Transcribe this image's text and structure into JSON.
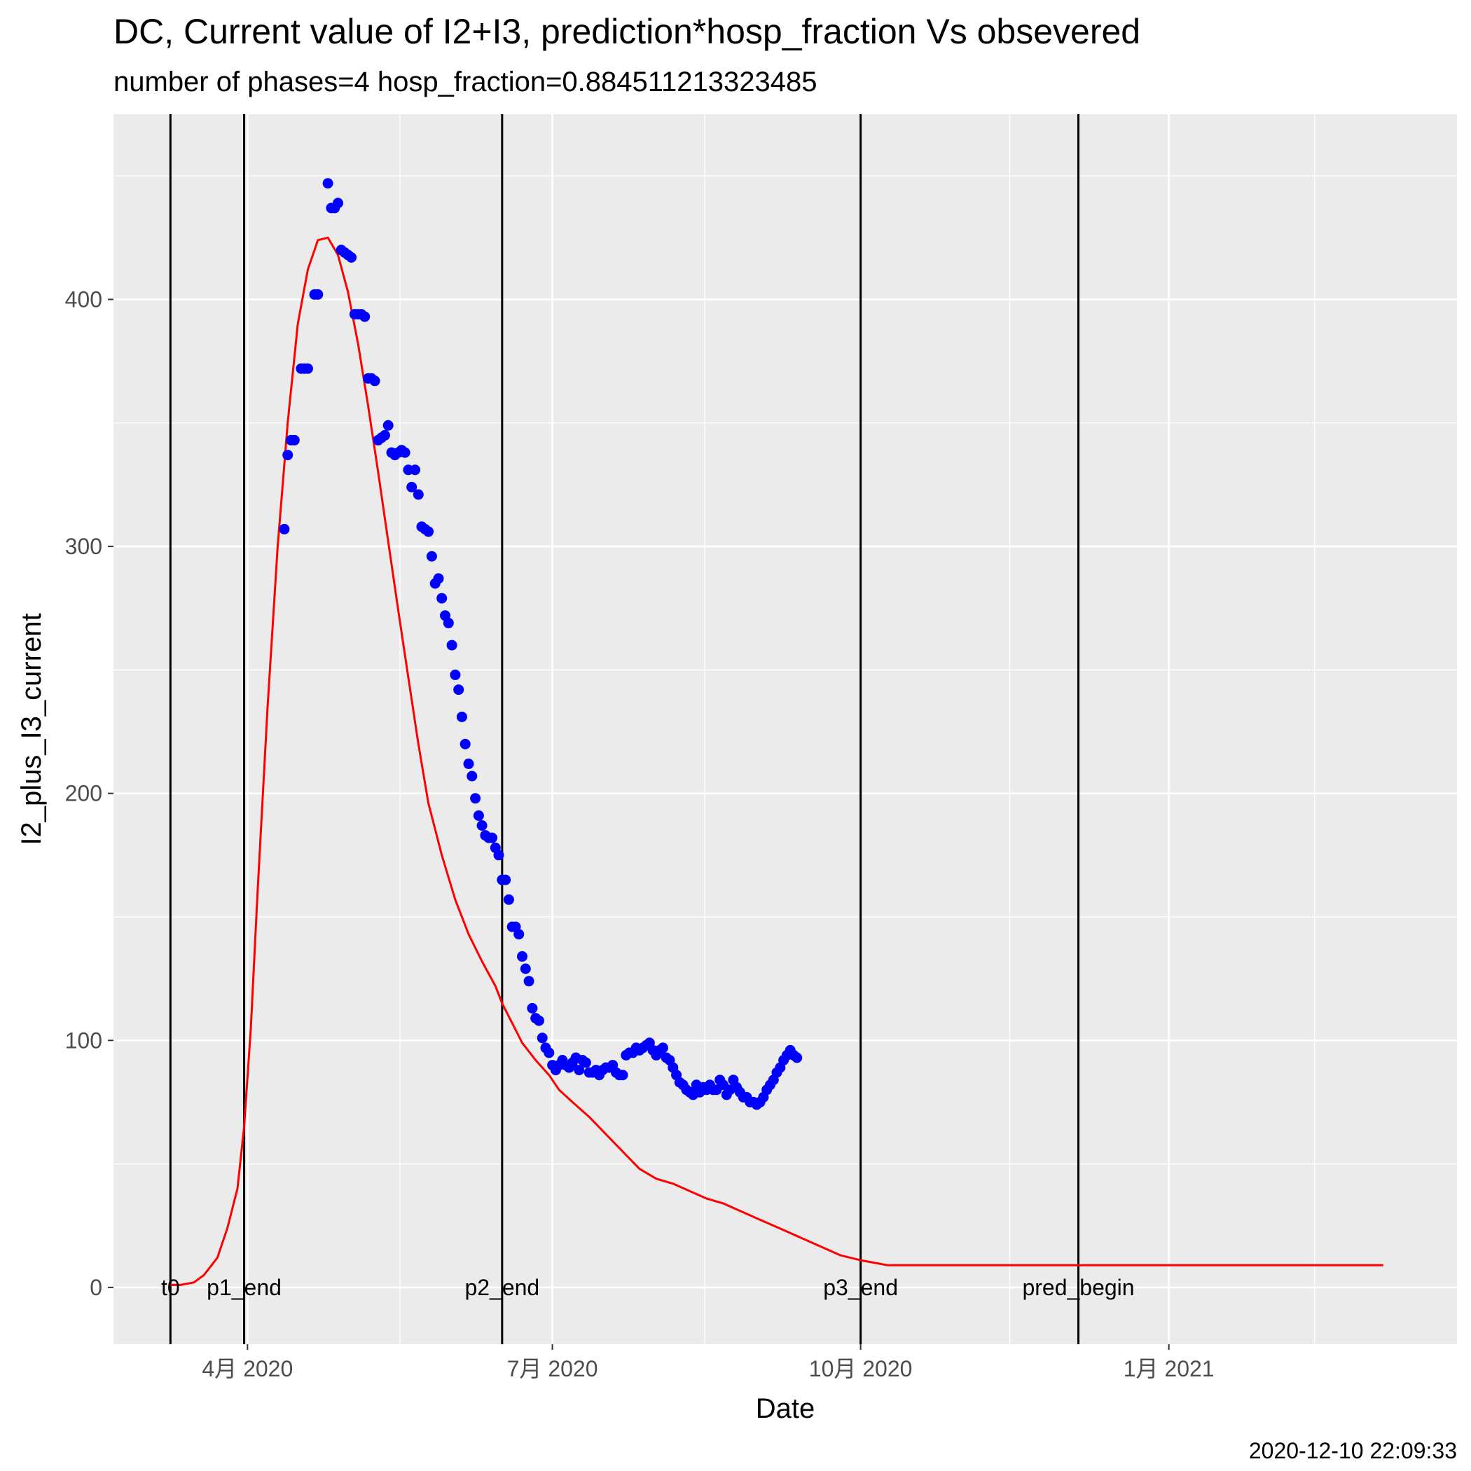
{
  "chart_data": {
    "type": "line",
    "title": "DC, Current value of I2+I3, prediction*hosp_fraction Vs obsevered",
    "subtitle": "number of phases=4   hosp_fraction=0.884511213323485",
    "xlabel": "Date",
    "ylabel": "I2_plus_I3_current",
    "caption": "2020-12-10 22:09:33",
    "xlim": [
      "2020-02-21",
      "2021-03-28"
    ],
    "ylim": [
      -23,
      475
    ],
    "x_ticks": [
      {
        "date": "2020-04-01",
        "label": "4月 2020"
      },
      {
        "date": "2020-07-01",
        "label": "7月 2020"
      },
      {
        "date": "2020-10-01",
        "label": "10月 2020"
      },
      {
        "date": "2021-01-01",
        "label": "1月 2021"
      }
    ],
    "y_ticks": [
      0,
      100,
      200,
      300,
      400
    ],
    "grid": true,
    "panel_background": "#ebebeb",
    "vlines": [
      {
        "date": "2020-03-09",
        "label": "t0"
      },
      {
        "date": "2020-03-31",
        "label": "p1_end"
      },
      {
        "date": "2020-06-16",
        "label": "p2_end"
      },
      {
        "date": "2020-10-01",
        "label": "p3_end"
      },
      {
        "date": "2020-12-05",
        "label": "pred_begin"
      }
    ],
    "series": [
      {
        "style": "line",
        "color": "#ff0000",
        "x": [
          "2020-03-09",
          "2020-03-12",
          "2020-03-16",
          "2020-03-19",
          "2020-03-23",
          "2020-03-26",
          "2020-03-29",
          "2020-03-31",
          "2020-04-02",
          "2020-04-04",
          "2020-04-07",
          "2020-04-10",
          "2020-04-13",
          "2020-04-16",
          "2020-04-19",
          "2020-04-22",
          "2020-04-25",
          "2020-04-28",
          "2020-05-01",
          "2020-05-04",
          "2020-05-07",
          "2020-05-10",
          "2020-05-13",
          "2020-05-16",
          "2020-05-19",
          "2020-05-22",
          "2020-05-25",
          "2020-05-29",
          "2020-06-02",
          "2020-06-06",
          "2020-06-10",
          "2020-06-14",
          "2020-06-16",
          "2020-06-19",
          "2020-06-22",
          "2020-06-26",
          "2020-06-30",
          "2020-07-03",
          "2020-07-07",
          "2020-07-12",
          "2020-07-17",
          "2020-07-22",
          "2020-07-27",
          "2020-08-01",
          "2020-08-06",
          "2020-08-11",
          "2020-08-16",
          "2020-08-21",
          "2020-08-26",
          "2020-08-31",
          "2020-09-05",
          "2020-09-10",
          "2020-09-15",
          "2020-09-20",
          "2020-09-25",
          "2020-10-01",
          "2020-10-05",
          "2020-10-09",
          "2020-10-12",
          "2020-10-16",
          "2020-10-20",
          "2020-10-24",
          "2020-10-28",
          "2020-11-01",
          "2020-11-05",
          "2020-11-09",
          "2020-11-13",
          "2020-11-17",
          "2020-11-21",
          "2020-11-25",
          "2020-11-28",
          "2020-12-01",
          "2020-12-04",
          "2020-12-07",
          "2020-12-09",
          "2020-12-12",
          "2020-12-15",
          "2020-12-19",
          "2020-12-23",
          "2020-12-27",
          "2020-12-31",
          "2021-01-04",
          "2021-01-08",
          "2021-01-12",
          "2021-01-16",
          "2021-01-21",
          "2021-01-26",
          "2021-01-31",
          "2021-02-05",
          "2021-02-10",
          "2021-02-15",
          "2021-02-20",
          "2021-02-25",
          "2021-03-02",
          "2021-03-06"
        ],
        "values": [
          1,
          1,
          2,
          5,
          12,
          24,
          40,
          65,
          105,
          160,
          235,
          300,
          350,
          390,
          412,
          424,
          425,
          418,
          403,
          382,
          357,
          330,
          302,
          274,
          247,
          220,
          196,
          175,
          157,
          143,
          132,
          122,
          115,
          107,
          99,
          92,
          86,
          80,
          75,
          69,
          62,
          55,
          48,
          44,
          42,
          39,
          36,
          34,
          31,
          28,
          25,
          22,
          19,
          16,
          13,
          11,
          10,
          9,
          9,
          9,
          9,
          9,
          9,
          9,
          9,
          9,
          9,
          9,
          9,
          9,
          9,
          9,
          9,
          9,
          9,
          9,
          9,
          9,
          9,
          9,
          9,
          9,
          9,
          9,
          9,
          9,
          9,
          9,
          9,
          9,
          9,
          9,
          9,
          9,
          9
        ]
      },
      {
        "style": "points",
        "color": "#0000ff",
        "x": [
          "2020-04-12",
          "2020-04-13",
          "2020-04-14",
          "2020-04-15",
          "2020-04-17",
          "2020-04-18",
          "2020-04-19",
          "2020-04-21",
          "2020-04-22",
          "2020-04-25",
          "2020-04-26",
          "2020-04-27",
          "2020-04-28",
          "2020-04-29",
          "2020-04-30",
          "2020-05-01",
          "2020-05-02",
          "2020-05-03",
          "2020-05-04",
          "2020-05-05",
          "2020-05-06",
          "2020-05-07",
          "2020-05-08",
          "2020-05-09",
          "2020-05-10",
          "2020-05-11",
          "2020-05-12",
          "2020-05-13",
          "2020-05-14",
          "2020-05-15",
          "2020-05-16",
          "2020-05-17",
          "2020-05-18",
          "2020-05-19",
          "2020-05-20",
          "2020-05-21",
          "2020-05-22",
          "2020-05-23",
          "2020-05-24",
          "2020-05-25",
          "2020-05-26",
          "2020-05-27",
          "2020-05-28",
          "2020-05-29",
          "2020-05-30",
          "2020-05-31",
          "2020-06-01",
          "2020-06-02",
          "2020-06-03",
          "2020-06-04",
          "2020-06-05",
          "2020-06-06",
          "2020-06-07",
          "2020-06-08",
          "2020-06-09",
          "2020-06-10",
          "2020-06-11",
          "2020-06-12",
          "2020-06-13",
          "2020-06-14",
          "2020-06-15",
          "2020-06-16",
          "2020-06-17",
          "2020-06-18",
          "2020-06-19",
          "2020-06-20",
          "2020-06-21",
          "2020-06-22",
          "2020-06-23",
          "2020-06-24",
          "2020-06-25",
          "2020-06-26",
          "2020-06-27",
          "2020-06-28",
          "2020-06-29",
          "2020-06-30",
          "2020-07-01",
          "2020-07-02",
          "2020-07-03",
          "2020-07-04",
          "2020-07-05",
          "2020-07-06",
          "2020-07-07",
          "2020-07-08",
          "2020-07-09",
          "2020-07-10",
          "2020-07-11",
          "2020-07-12",
          "2020-07-13",
          "2020-07-14",
          "2020-07-15",
          "2020-07-16",
          "2020-07-17",
          "2020-07-18",
          "2020-07-19",
          "2020-07-20",
          "2020-07-21",
          "2020-07-22",
          "2020-07-23",
          "2020-07-24",
          "2020-07-25",
          "2020-07-26",
          "2020-07-27",
          "2020-07-28",
          "2020-07-29",
          "2020-07-30",
          "2020-07-31",
          "2020-08-01",
          "2020-08-02",
          "2020-08-03",
          "2020-08-04",
          "2020-08-05",
          "2020-08-06",
          "2020-08-07",
          "2020-08-08",
          "2020-08-09",
          "2020-08-10",
          "2020-08-11",
          "2020-08-12",
          "2020-08-13",
          "2020-08-14",
          "2020-08-15",
          "2020-08-16",
          "2020-08-17",
          "2020-08-18",
          "2020-08-19",
          "2020-08-20",
          "2020-08-21",
          "2020-08-22",
          "2020-08-23",
          "2020-08-24",
          "2020-08-25",
          "2020-08-26",
          "2020-08-27",
          "2020-08-28",
          "2020-08-29",
          "2020-08-30",
          "2020-08-31",
          "2020-09-01",
          "2020-09-02",
          "2020-09-03",
          "2020-09-04",
          "2020-09-05",
          "2020-09-06",
          "2020-09-07",
          "2020-09-08",
          "2020-09-09",
          "2020-09-10",
          "2020-09-11",
          "2020-09-12"
        ],
        "values": [
          307,
          337,
          343,
          343,
          372,
          372,
          372,
          402,
          402,
          447,
          437,
          437,
          439,
          420,
          419,
          418,
          417,
          394,
          394,
          394,
          393,
          368,
          368,
          367,
          343,
          344,
          345,
          349,
          338,
          337,
          338,
          339,
          338,
          331,
          324,
          331,
          321,
          308,
          307,
          306,
          296,
          285,
          287,
          279,
          272,
          269,
          260,
          248,
          242,
          231,
          220,
          212,
          207,
          198,
          191,
          187,
          183,
          182,
          182,
          178,
          175,
          165,
          165,
          157,
          146,
          146,
          143,
          134,
          129,
          124,
          113,
          109,
          108,
          101,
          97,
          95,
          90,
          88,
          90,
          92,
          90,
          89,
          91,
          93,
          88,
          92,
          91,
          87,
          87,
          88,
          86,
          88,
          89,
          89,
          90,
          87,
          86,
          86,
          94,
          95,
          95,
          97,
          96,
          97,
          98,
          99,
          96,
          94,
          96,
          97,
          93,
          92,
          89,
          86,
          83,
          82,
          80,
          79,
          78,
          82,
          79,
          81,
          80,
          82,
          80,
          80,
          84,
          82,
          78,
          80,
          84,
          81,
          79,
          77,
          77,
          75,
          75,
          74,
          75,
          77,
          80,
          82,
          84,
          87,
          89,
          92,
          94,
          96,
          94,
          93
        ]
      }
    ]
  }
}
